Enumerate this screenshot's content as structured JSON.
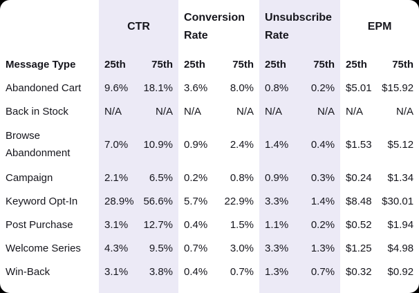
{
  "chart_data": {
    "type": "table",
    "corner_label": "Message Type",
    "column_groups": [
      {
        "label": "CTR",
        "subcolumns": [
          "25th",
          "75th"
        ],
        "striped": true
      },
      {
        "label": "Conversion Rate",
        "subcolumns": [
          "25th",
          "75th"
        ],
        "striped": false
      },
      {
        "label": "Unsubscribe Rate",
        "subcolumns": [
          "25th",
          "75th"
        ],
        "striped": true
      },
      {
        "label": "EPM",
        "subcolumns": [
          "25th",
          "75th"
        ],
        "striped": false
      }
    ],
    "rows": [
      {
        "label": "Abandoned Cart",
        "values": [
          "9.6%",
          "18.1%",
          "3.6%",
          "8.0%",
          "0.8%",
          "0.2%",
          "$5.01",
          "$15.92"
        ]
      },
      {
        "label": "Back in Stock",
        "values": [
          "N/A",
          "N/A",
          "N/A",
          "N/A",
          "N/A",
          "N/A",
          "N/A",
          "N/A"
        ]
      },
      {
        "label": "Browse Abandonment",
        "values": [
          "7.0%",
          "10.9%",
          "0.9%",
          "2.4%",
          "1.4%",
          "0.4%",
          "$1.53",
          "$5.12"
        ]
      },
      {
        "label": "Campaign",
        "values": [
          "2.1%",
          "6.5%",
          "0.2%",
          "0.8%",
          "0.9%",
          "0.3%",
          "$0.24",
          "$1.34"
        ]
      },
      {
        "label": "Keyword Opt-In",
        "values": [
          "28.9%",
          "56.6%",
          "5.7%",
          "22.9%",
          "3.3%",
          "1.4%",
          "$8.48",
          "$30.01"
        ]
      },
      {
        "label": "Post Purchase",
        "values": [
          "3.1%",
          "12.7%",
          "0.4%",
          "1.5%",
          "1.1%",
          "0.2%",
          "$0.52",
          "$1.94"
        ]
      },
      {
        "label": "Welcome Series",
        "values": [
          "4.3%",
          "9.5%",
          "0.7%",
          "3.0%",
          "3.3%",
          "1.3%",
          "$1.25",
          "$4.98"
        ]
      },
      {
        "label": "Win-Back",
        "values": [
          "3.1%",
          "3.8%",
          "0.4%",
          "0.7%",
          "1.3%",
          "0.7%",
          "$0.32",
          "$0.92"
        ]
      }
    ],
    "layout": {
      "grid": false,
      "striped_group_color": "#ECEAF6"
    }
  },
  "colors": {
    "stripe": "#ECEAF6",
    "text": "#15151C",
    "card_background": "#FFFFFF",
    "page_background": "#000000"
  }
}
